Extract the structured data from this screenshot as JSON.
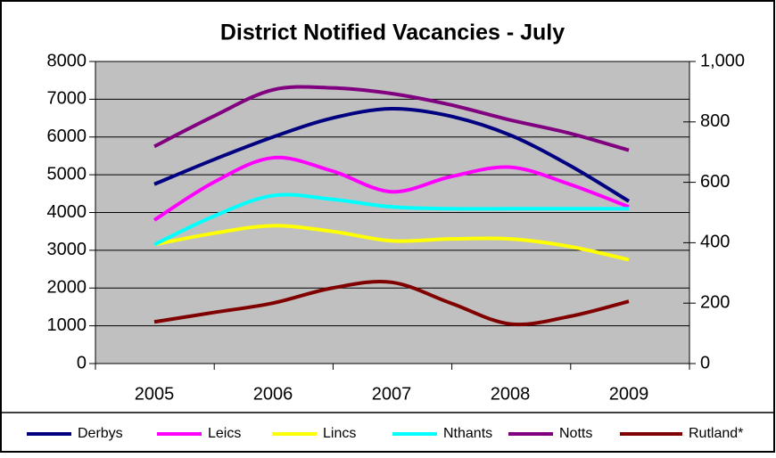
{
  "chart_data": {
    "type": "line",
    "title": "District Notified Vacancies - July",
    "categories": [
      "2005",
      null,
      "2006",
      null,
      "2007",
      null,
      "2008",
      null,
      "2009"
    ],
    "ylim": [
      0,
      8000
    ],
    "yticks": [
      0,
      1000,
      2000,
      3000,
      4000,
      5000,
      6000,
      7000,
      8000
    ],
    "y2lim": [
      0,
      1000
    ],
    "y2ticks": [
      0,
      200,
      400,
      600,
      800,
      {
        "value": 1000,
        "label": "1,000"
      }
    ],
    "grid": true,
    "legend": "bottom",
    "series": [
      {
        "name": "Derbys",
        "color": "#000080",
        "values": [
          4750,
          5400,
          6000,
          6500,
          6750,
          6550,
          6050,
          5250,
          4300
        ]
      },
      {
        "name": "Leics",
        "color": "#ff00ff",
        "values": [
          3800,
          4800,
          5450,
          5100,
          4550,
          4950,
          5200,
          4750,
          4150
        ]
      },
      {
        "name": "Lincs",
        "color": "#ffff00",
        "values": [
          3150,
          3450,
          3650,
          3500,
          3250,
          3300,
          3300,
          3100,
          2750
        ]
      },
      {
        "name": "Nthants",
        "color": "#00ffff",
        "values": [
          3150,
          3900,
          4450,
          4350,
          4150,
          4100,
          4100,
          4100,
          4100
        ]
      },
      {
        "name": "Notts",
        "color": "#800080",
        "values": [
          5750,
          6550,
          7250,
          7300,
          7150,
          6850,
          6450,
          6100,
          5650
        ]
      },
      {
        "name": "Rutland*",
        "color": "#800000",
        "axis": "y2",
        "values": [
          138,
          169,
          200,
          250,
          269,
          200,
          131,
          156,
          206
        ]
      }
    ]
  }
}
